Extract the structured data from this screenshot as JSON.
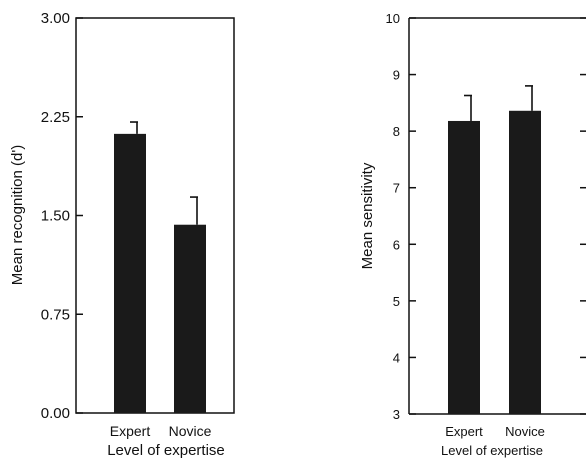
{
  "chart_data": [
    {
      "type": "bar",
      "categories": [
        "Expert",
        "Novice"
      ],
      "values": [
        2.12,
        1.43
      ],
      "errors": [
        0.09,
        0.21
      ],
      "xlabel": "Level of expertise",
      "ylabel": "Mean recognition (d')",
      "ylim": [
        0,
        3
      ],
      "yticks": [
        0,
        0.75,
        1.5,
        2.25,
        3
      ],
      "ytick_labels": [
        "0.00",
        "0.75",
        "1.50",
        "2.25",
        "3.00"
      ],
      "bar_color": "#1a1a1a",
      "grid": false
    },
    {
      "type": "bar",
      "categories": [
        "Expert",
        "Novice"
      ],
      "values": [
        8.18,
        8.36
      ],
      "errors": [
        0.45,
        0.44
      ],
      "xlabel": "Level of expertise",
      "ylabel": "Mean sensitivity",
      "ylim": [
        3,
        10
      ],
      "yticks": [
        3,
        4,
        5,
        6,
        7,
        8,
        9,
        10
      ],
      "ytick_labels": [
        "3",
        "4",
        "5",
        "6",
        "7",
        "8",
        "9",
        "10"
      ],
      "bar_color": "#1a1a1a",
      "grid": false
    }
  ]
}
